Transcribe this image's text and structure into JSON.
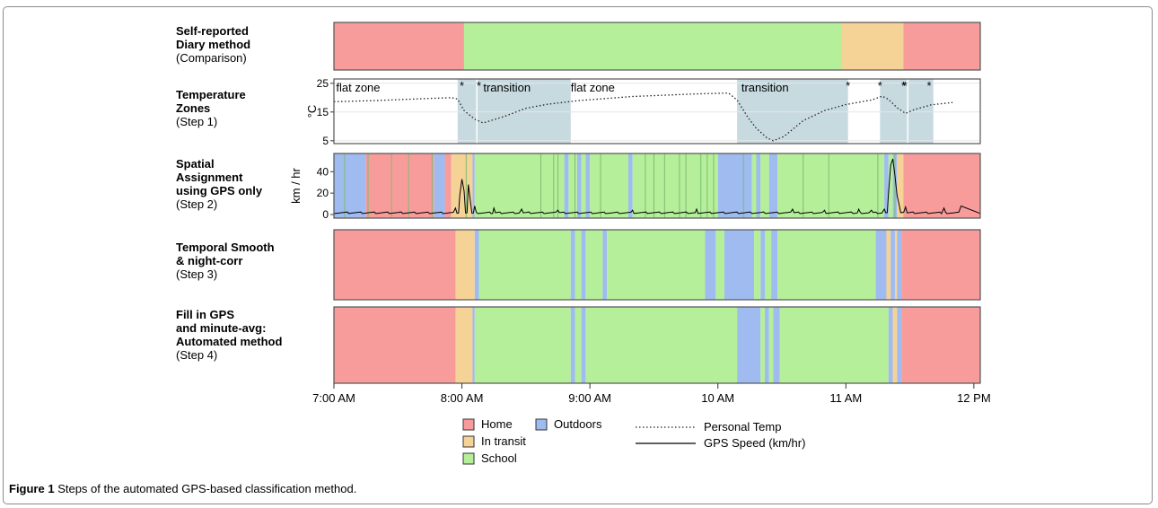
{
  "caption": {
    "bold": "Figure 1",
    "text": " Steps of the automated GPS-based classification method."
  },
  "row_labels": [
    {
      "bold": [
        "Self-reported",
        "Diary method"
      ],
      "sub": "(Comparison)"
    },
    {
      "bold": [
        "Temperature",
        "Zones"
      ],
      "sub": "(Step 1)"
    },
    {
      "bold": [
        "Spatial",
        "Assignment",
        "using GPS only"
      ],
      "sub": "(Step 2)"
    },
    {
      "bold": [
        "Temporal Smooth",
        "& night-corr"
      ],
      "sub": "(Step 3)"
    },
    {
      "bold": [
        "Fill in GPS",
        "and minute-avg:",
        "Automated method"
      ],
      "sub": "(Step 4)"
    }
  ],
  "colors": {
    "Home": "#f89b9b",
    "In transit": "#f5d296",
    "School": "#b5ef9a",
    "Outdoors": "#9fbbef",
    "zone_shade": "#c7dae0",
    "separator": "#7ebd71"
  },
  "chart_data": {
    "type": "timeline",
    "x_axis": {
      "unit": "minutes since midnight",
      "range": [
        420,
        723
      ],
      "ticks": [
        420,
        480,
        540,
        600,
        660,
        720
      ],
      "tick_labels": [
        "7:00 AM",
        "8:00 AM",
        "9:00 AM",
        "10 AM",
        "11 AM",
        "12 PM"
      ]
    },
    "legend": [
      {
        "type": "box",
        "label": "Home",
        "key": "Home"
      },
      {
        "type": "box",
        "label": "In transit",
        "key": "In transit"
      },
      {
        "type": "box",
        "label": "School",
        "key": "School"
      },
      {
        "type": "box",
        "label": "Outdoors",
        "key": "Outdoors"
      },
      {
        "type": "dotted",
        "label": "Personal Temp"
      },
      {
        "type": "solid",
        "label": "GPS Speed (km/hr)"
      }
    ],
    "diary": [
      {
        "start": 420,
        "end": 481,
        "cls": "Home"
      },
      {
        "start": 481,
        "end": 658,
        "cls": "School"
      },
      {
        "start": 658,
        "end": 687,
        "cls": "In transit"
      },
      {
        "start": 687,
        "end": 723,
        "cls": "Home"
      }
    ],
    "temperature": {
      "ylabel": "°C",
      "ylim": [
        4,
        26.5
      ],
      "yticks": [
        5,
        15,
        25
      ],
      "zones": [
        [
          478,
          531
        ],
        [
          609,
          661
        ],
        [
          676,
          701
        ]
      ],
      "zone_markers": [
        487,
        555,
        675,
        689
      ],
      "zone_text": [
        {
          "text": "flat zone",
          "x": 421
        },
        {
          "text": "transition",
          "x": 490
        },
        {
          "text": "flat zone",
          "x": 531
        },
        {
          "text": "transition",
          "x": 611
        }
      ],
      "star_markers": [
        480,
        488,
        661,
        676,
        687,
        687.7,
        699
      ],
      "curve": [
        [
          420,
          18.6
        ],
        [
          440,
          19
        ],
        [
          460,
          19.6
        ],
        [
          475,
          20
        ],
        [
          478,
          19.5
        ],
        [
          481,
          15.5
        ],
        [
          486,
          12.5
        ],
        [
          490,
          11.2
        ],
        [
          500,
          13.5
        ],
        [
          510,
          16.3
        ],
        [
          520,
          17.7
        ],
        [
          535,
          19
        ],
        [
          560,
          20.4
        ],
        [
          590,
          21.3
        ],
        [
          605,
          21.6
        ],
        [
          609,
          19.2
        ],
        [
          614,
          13.2
        ],
        [
          618,
          9.3
        ],
        [
          623,
          6
        ],
        [
          626,
          5
        ],
        [
          631,
          6.5
        ],
        [
          640,
          12
        ],
        [
          650,
          15.5
        ],
        [
          660,
          17.6
        ],
        [
          672,
          19.2
        ],
        [
          677,
          20.5
        ],
        [
          680,
          19.4
        ],
        [
          684,
          16.5
        ],
        [
          688,
          14.5
        ],
        [
          692,
          15.8
        ],
        [
          700,
          17.5
        ],
        [
          710,
          18.3
        ]
      ]
    },
    "spatial": {
      "ylabel": "km / hr",
      "ylim": [
        0,
        57
      ],
      "yticks": [
        0,
        20,
        40
      ],
      "segments": [
        {
          "start": 420,
          "end": 435,
          "cls": "Outdoors"
        },
        {
          "start": 435,
          "end": 467,
          "cls": "Home"
        },
        {
          "start": 467,
          "end": 472,
          "cls": "Outdoors"
        },
        {
          "start": 472,
          "end": 475,
          "cls": "Home"
        },
        {
          "start": 475,
          "end": 485,
          "cls": "In transit"
        },
        {
          "start": 485,
          "end": 486,
          "cls": "Outdoors"
        },
        {
          "start": 486,
          "end": 528,
          "cls": "School"
        },
        {
          "start": 528,
          "end": 530,
          "cls": "Outdoors"
        },
        {
          "start": 530,
          "end": 534,
          "cls": "School"
        },
        {
          "start": 534,
          "end": 536,
          "cls": "Outdoors"
        },
        {
          "start": 536,
          "end": 538,
          "cls": "School"
        },
        {
          "start": 538,
          "end": 540,
          "cls": "Outdoors"
        },
        {
          "start": 540,
          "end": 558,
          "cls": "School"
        },
        {
          "start": 558,
          "end": 560,
          "cls": "Outdoors"
        },
        {
          "start": 560,
          "end": 600,
          "cls": "School"
        },
        {
          "start": 600,
          "end": 616,
          "cls": "Outdoors"
        },
        {
          "start": 616,
          "end": 618,
          "cls": "School"
        },
        {
          "start": 618,
          "end": 620,
          "cls": "Outdoors"
        },
        {
          "start": 620,
          "end": 624,
          "cls": "School"
        },
        {
          "start": 624,
          "end": 628,
          "cls": "Outdoors"
        },
        {
          "start": 628,
          "end": 678,
          "cls": "School"
        },
        {
          "start": 678,
          "end": 680,
          "cls": "Outdoors"
        },
        {
          "start": 680,
          "end": 682,
          "cls": "School"
        },
        {
          "start": 682,
          "end": 684,
          "cls": "Outdoors"
        },
        {
          "start": 684,
          "end": 687,
          "cls": "In transit"
        },
        {
          "start": 687,
          "end": 723,
          "cls": "Home"
        }
      ],
      "separators": [
        425,
        436,
        447,
        455,
        466,
        482,
        517,
        523,
        525,
        533,
        545,
        566,
        570,
        575,
        582,
        585,
        592,
        595,
        598,
        612,
        640,
        652,
        675,
        683
      ],
      "speed_spikes": [
        [
          477,
          6
        ],
        [
          479,
          18
        ],
        [
          480,
          33
        ],
        [
          481,
          22
        ],
        [
          483,
          28
        ],
        [
          484,
          12
        ],
        [
          486,
          8
        ],
        [
          495,
          6
        ],
        [
          508,
          5
        ],
        [
          525,
          4
        ],
        [
          560,
          4
        ],
        [
          590,
          5
        ],
        [
          635,
          5
        ],
        [
          650,
          4
        ],
        [
          666,
          5
        ],
        [
          672,
          4
        ],
        [
          678,
          5
        ],
        [
          680,
          20
        ],
        [
          681,
          46
        ],
        [
          682,
          52
        ],
        [
          683,
          36
        ],
        [
          684,
          18
        ],
        [
          685,
          9
        ],
        [
          688,
          7
        ],
        [
          706,
          6
        ],
        [
          714,
          8
        ]
      ]
    },
    "smooth": [
      {
        "start": 420,
        "end": 477,
        "cls": "Home"
      },
      {
        "start": 477,
        "end": 486,
        "cls": "In transit"
      },
      {
        "start": 486,
        "end": 488,
        "cls": "Outdoors"
      },
      {
        "start": 488,
        "end": 531,
        "cls": "School"
      },
      {
        "start": 531,
        "end": 533,
        "cls": "Outdoors"
      },
      {
        "start": 533,
        "end": 536,
        "cls": "School"
      },
      {
        "start": 536,
        "end": 538,
        "cls": "Outdoors"
      },
      {
        "start": 538,
        "end": 546,
        "cls": "School"
      },
      {
        "start": 546,
        "end": 548,
        "cls": "Outdoors"
      },
      {
        "start": 548,
        "end": 594,
        "cls": "School"
      },
      {
        "start": 594,
        "end": 599,
        "cls": "Outdoors"
      },
      {
        "start": 599,
        "end": 603,
        "cls": "School"
      },
      {
        "start": 603,
        "end": 617,
        "cls": "Outdoors"
      },
      {
        "start": 617,
        "end": 620,
        "cls": "School"
      },
      {
        "start": 620,
        "end": 622,
        "cls": "Outdoors"
      },
      {
        "start": 622,
        "end": 625,
        "cls": "School"
      },
      {
        "start": 625,
        "end": 628,
        "cls": "Outdoors"
      },
      {
        "start": 628,
        "end": 674,
        "cls": "School"
      },
      {
        "start": 674,
        "end": 679,
        "cls": "Outdoors"
      },
      {
        "start": 679,
        "end": 681,
        "cls": "In transit"
      },
      {
        "start": 681,
        "end": 683,
        "cls": "Outdoors"
      },
      {
        "start": 683,
        "end": 684,
        "cls": "In transit"
      },
      {
        "start": 684,
        "end": 686,
        "cls": "Outdoors"
      },
      {
        "start": 686,
        "end": 723,
        "cls": "Home"
      }
    ],
    "automated": [
      {
        "start": 420,
        "end": 477,
        "cls": "Home"
      },
      {
        "start": 477,
        "end": 485,
        "cls": "In transit"
      },
      {
        "start": 485,
        "end": 486,
        "cls": "Outdoors"
      },
      {
        "start": 486,
        "end": 531,
        "cls": "School"
      },
      {
        "start": 531,
        "end": 533,
        "cls": "Outdoors"
      },
      {
        "start": 533,
        "end": 536,
        "cls": "School"
      },
      {
        "start": 536,
        "end": 538,
        "cls": "Outdoors"
      },
      {
        "start": 538,
        "end": 609,
        "cls": "School"
      },
      {
        "start": 609,
        "end": 620,
        "cls": "Outdoors"
      },
      {
        "start": 620,
        "end": 622,
        "cls": "School"
      },
      {
        "start": 622,
        "end": 624,
        "cls": "Outdoors"
      },
      {
        "start": 624,
        "end": 626,
        "cls": "School"
      },
      {
        "start": 626,
        "end": 629,
        "cls": "Outdoors"
      },
      {
        "start": 629,
        "end": 680,
        "cls": "School"
      },
      {
        "start": 680,
        "end": 682,
        "cls": "Outdoors"
      },
      {
        "start": 682,
        "end": 684,
        "cls": "In transit"
      },
      {
        "start": 684,
        "end": 686,
        "cls": "Outdoors"
      },
      {
        "start": 686,
        "end": 723,
        "cls": "Home"
      }
    ]
  }
}
